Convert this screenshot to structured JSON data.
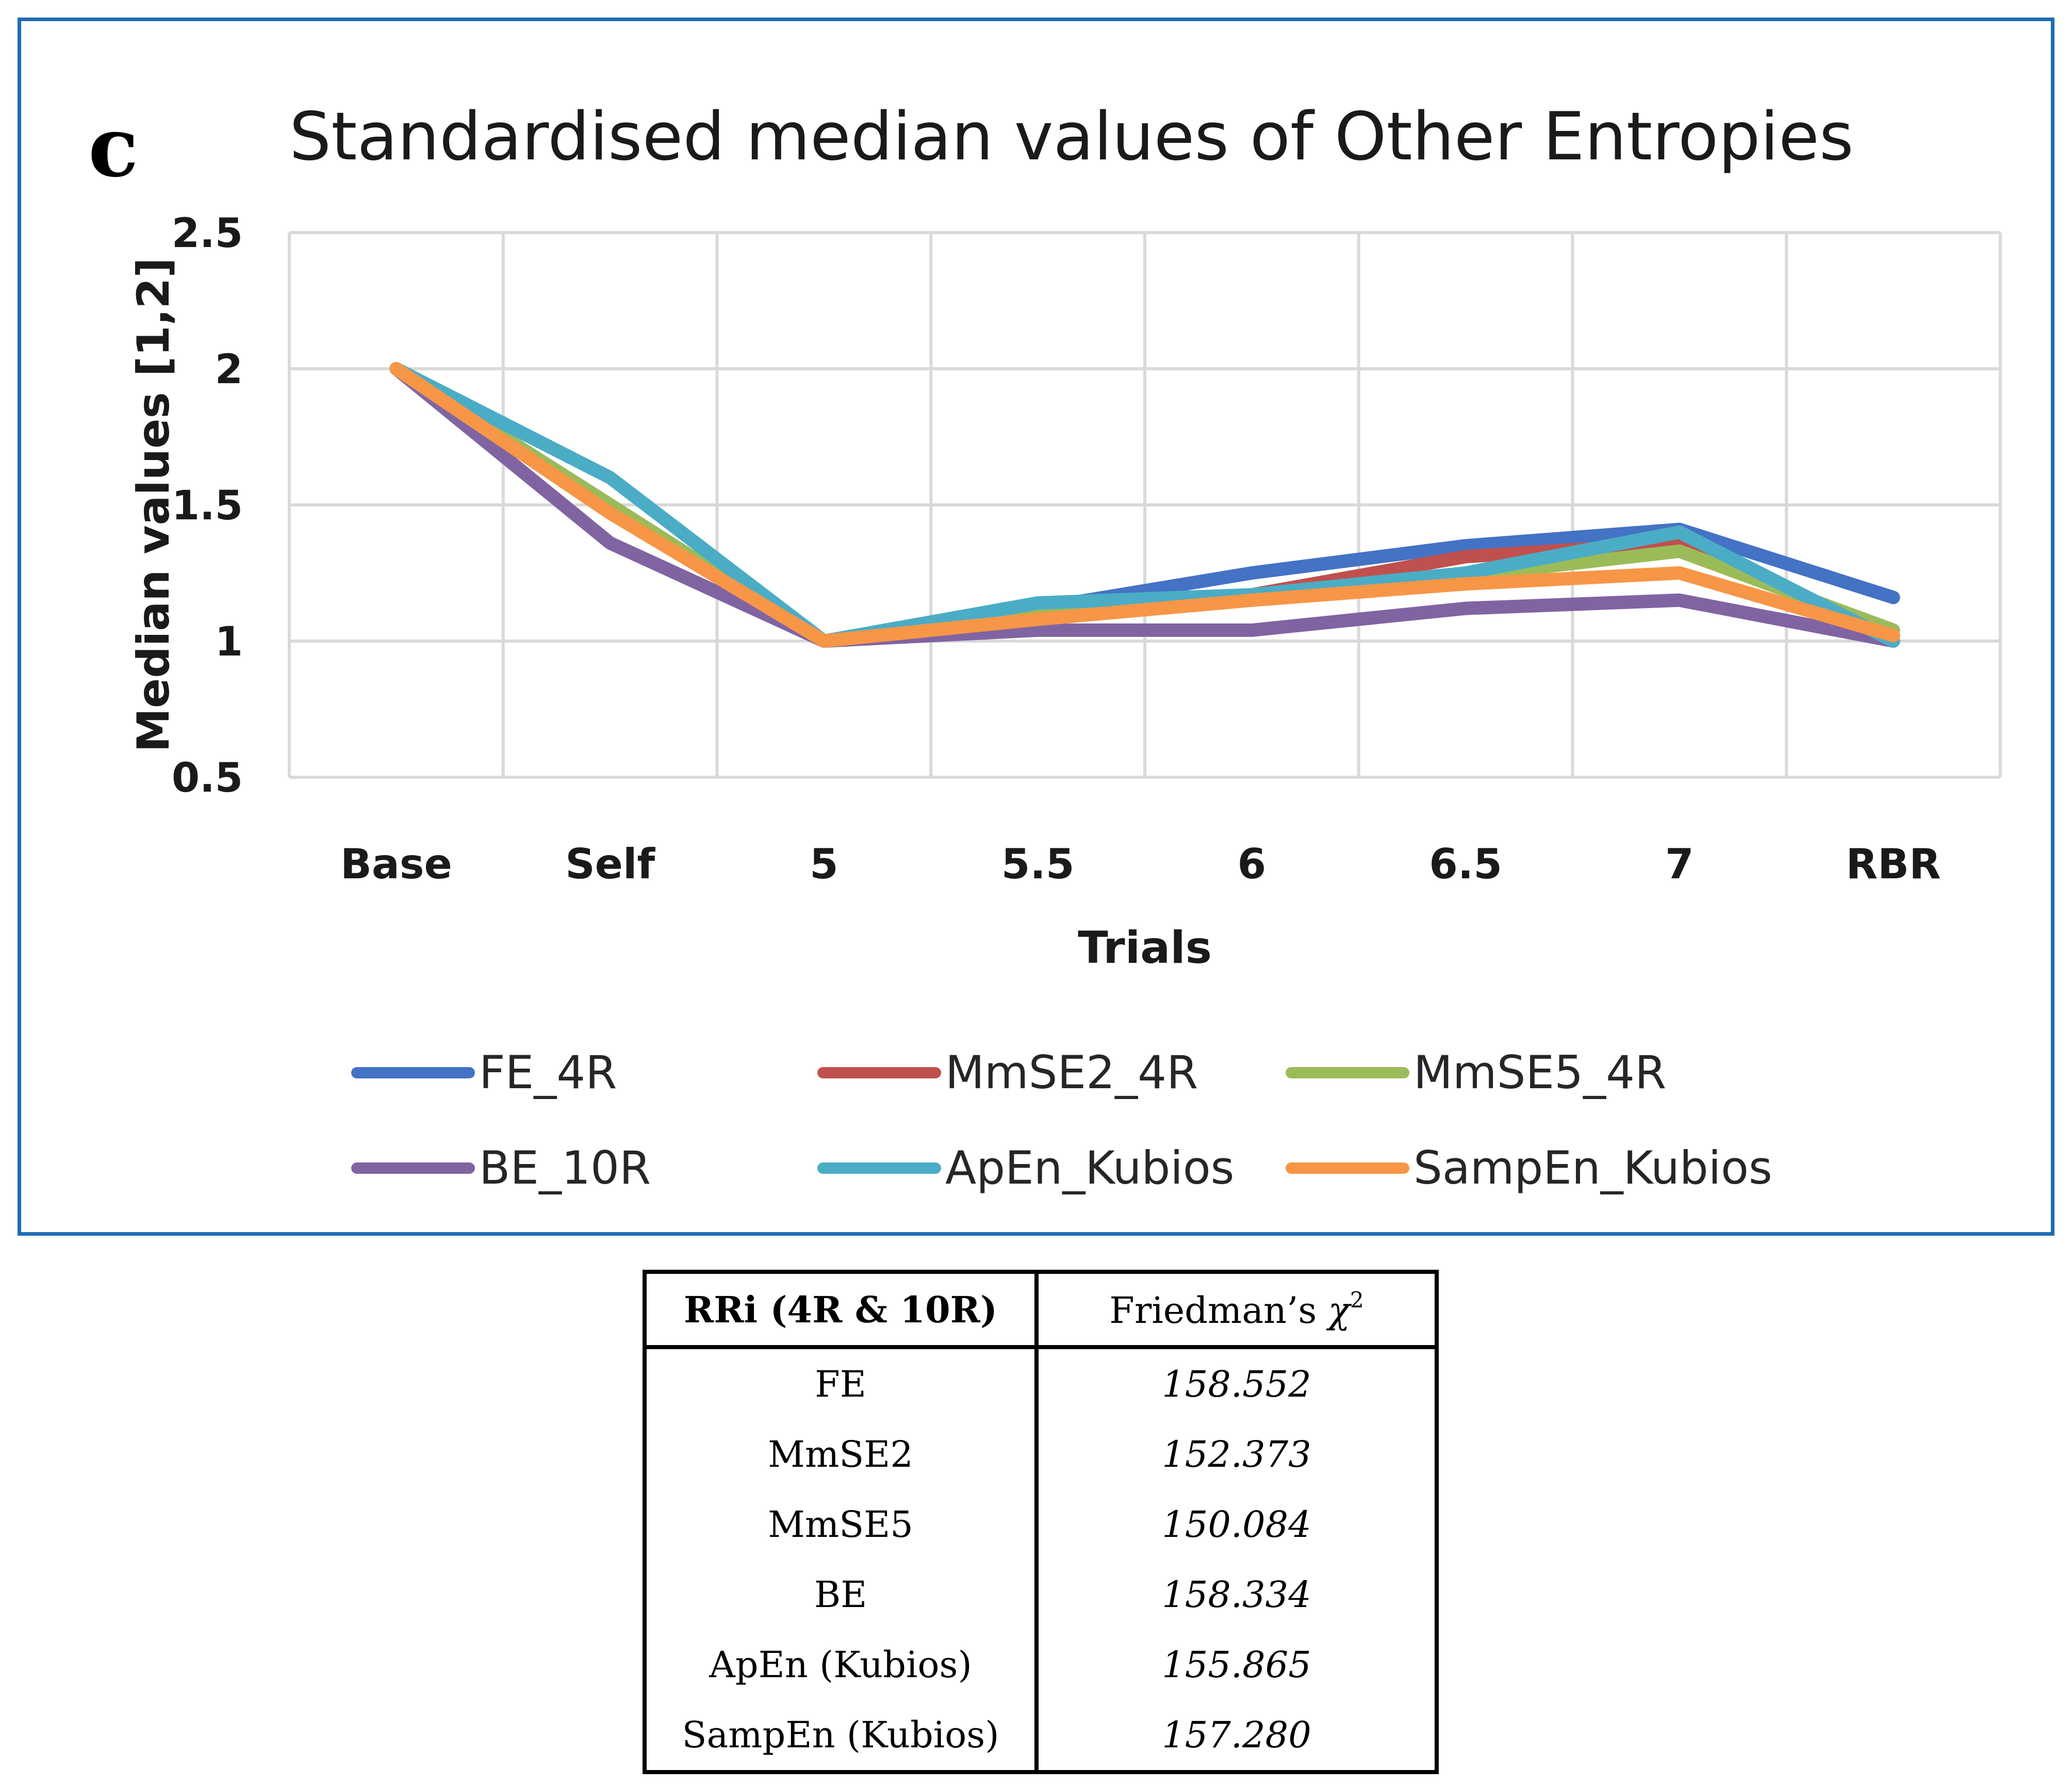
{
  "panel_label": "c",
  "chart_data": {
    "type": "line",
    "title": "Standardised median values of Other Entropies",
    "xlabel": "Trials",
    "ylabel": "Median values [1,2]",
    "categories": [
      "Base",
      "Self",
      "5",
      "5.5",
      "6",
      "6.5",
      "7",
      "RBR"
    ],
    "ylim": [
      0.5,
      2.5
    ],
    "yticks": [
      0.5,
      1,
      1.5,
      2,
      2.5
    ],
    "ytick_labels": [
      "0.5",
      "1",
      "1.5",
      "2",
      "2.5"
    ],
    "grid": true,
    "legend_position": "bottom",
    "series": [
      {
        "name": "FE_4R",
        "color": "#4472c4",
        "values": [
          2.0,
          1.5,
          1.0,
          1.12,
          1.25,
          1.35,
          1.41,
          1.16
        ]
      },
      {
        "name": "MmSE2_4R",
        "color": "#c0504d",
        "values": [
          2.0,
          1.5,
          1.0,
          1.11,
          1.17,
          1.31,
          1.36,
          1.02
        ]
      },
      {
        "name": "MmSE5_4R",
        "color": "#9bbb59",
        "values": [
          2.0,
          1.5,
          1.0,
          1.1,
          1.15,
          1.24,
          1.33,
          1.04
        ]
      },
      {
        "name": "BE_10R",
        "color": "#8064a2",
        "values": [
          2.0,
          1.36,
          1.0,
          1.04,
          1.04,
          1.12,
          1.15,
          1.0
        ]
      },
      {
        "name": "ApEn_Kubios",
        "color": "#4bacc6",
        "values": [
          2.0,
          1.6,
          1.0,
          1.14,
          1.17,
          1.25,
          1.4,
          1.0
        ]
      },
      {
        "name": "SampEn_Kubios",
        "color": "#f79646",
        "values": [
          2.0,
          1.47,
          1.0,
          1.08,
          1.15,
          1.21,
          1.25,
          1.02
        ]
      }
    ]
  },
  "table": {
    "header": {
      "col1": "RRi (4R & 10R)",
      "col2_prefix": "Friedman’s ",
      "col2_symbol": "χ",
      "col2_sup": "2"
    },
    "rows": [
      {
        "name": "FE",
        "value": "158.552"
      },
      {
        "name": "MmSE2",
        "value": "152.373"
      },
      {
        "name": "MmSE5",
        "value": "150.084"
      },
      {
        "name": "BE",
        "value": "158.334"
      },
      {
        "name": "ApEn (Kubios)",
        "value": "155.865"
      },
      {
        "name": "SampEn (Kubios)",
        "value": "157.280"
      }
    ]
  }
}
